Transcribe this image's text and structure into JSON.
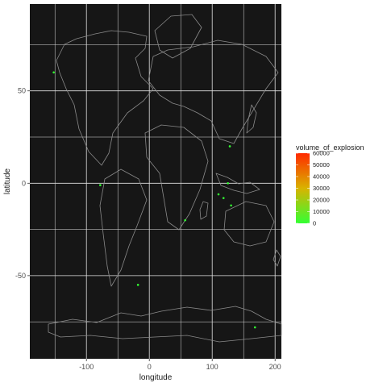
{
  "chart_data": {
    "type": "scatter",
    "background_color": "#161616",
    "grid": true,
    "grid_color": "#e0e0e0",
    "coastline_color": "#8a8a8a",
    "xlabel": "longitude",
    "ylabel": "latitude",
    "xlim": [
      -190,
      210
    ],
    "ylim": [
      -95,
      97
    ],
    "x_ticks": [
      -100,
      0,
      100,
      200
    ],
    "x_tick_labels": [
      "-100",
      "0",
      "100",
      "200"
    ],
    "y_ticks": [
      -50,
      0,
      50
    ],
    "y_tick_labels": [
      "-50",
      "0",
      "50"
    ],
    "legend": {
      "title": "volume_of_explosion",
      "position": "right",
      "low_color": "#33ff33",
      "mid_color": "#d9b300",
      "high_color": "#ff2a00",
      "range": [
        0,
        60000
      ],
      "breaks": [
        0,
        10000,
        20000,
        30000,
        40000,
        50000,
        60000
      ],
      "labels": [
        "0",
        "10000",
        "20000",
        "30000",
        "40000",
        "50000",
        "60000"
      ]
    },
    "points": [
      {
        "x": -152,
        "y": 60,
        "value": 0
      },
      {
        "x": -78,
        "y": -1,
        "value": 0
      },
      {
        "x": -18,
        "y": -55,
        "value": 0
      },
      {
        "x": 57,
        "y": -20,
        "value": 0
      },
      {
        "x": 128,
        "y": 20,
        "value": 0
      },
      {
        "x": 118,
        "y": -8,
        "value": 0
      },
      {
        "x": 110,
        "y": -6,
        "value": 0
      },
      {
        "x": 125,
        "y": 0,
        "value": 0
      },
      {
        "x": 130,
        "y": -12,
        "value": 0
      },
      {
        "x": 168,
        "y": -78,
        "value": 0
      }
    ]
  }
}
